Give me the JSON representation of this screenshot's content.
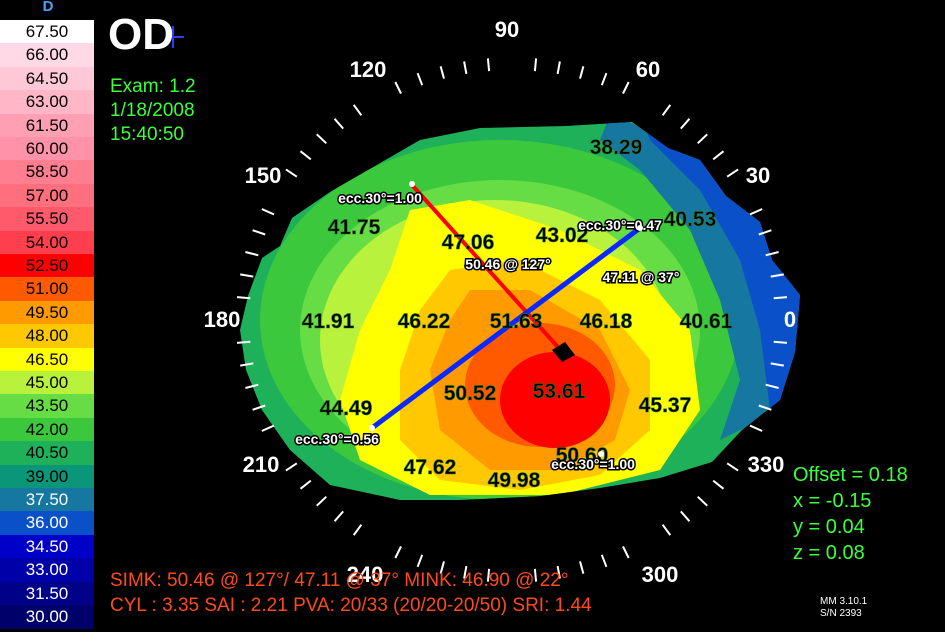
{
  "scale": {
    "letter": "D",
    "values": [
      "67.50",
      "66.00",
      "64.50",
      "63.00",
      "61.50",
      "60.00",
      "58.50",
      "57.00",
      "55.50",
      "54.00",
      "52.50",
      "51.00",
      "49.50",
      "48.00",
      "46.50",
      "45.00",
      "43.50",
      "42.00",
      "40.50",
      "39.00",
      "37.50",
      "36.00",
      "34.50",
      "33.00",
      "31.50",
      "30.00"
    ],
    "colors": [
      "#ffffff",
      "#ffd9e6",
      "#ffc8d7",
      "#ffb7c7",
      "#ff9fb3",
      "#ff92a8",
      "#ff7f90",
      "#ff6f7d",
      "#ff5a6b",
      "#ff3f4e",
      "#ff0000",
      "#ff5a00",
      "#ff9a00",
      "#ffc800",
      "#ffff00",
      "#b8f23c",
      "#66dd44",
      "#3cc83c",
      "#1fb05a",
      "#0a9678",
      "#1678a0",
      "#0a50c8",
      "#0000c8",
      "#0000a8",
      "#000088",
      "#00006a"
    ]
  },
  "eye": "OD",
  "exam": {
    "exam_label": "Exam: 1.2",
    "date": "1/18/2008",
    "time": "15:40:50"
  },
  "angles": {
    "a90": "90",
    "a60": "60",
    "a120": "120",
    "a30": "30",
    "a150": "150",
    "a0": "0",
    "a180": "180",
    "a330": "330",
    "a210": "210",
    "a240": "240",
    "a300": "300"
  },
  "map_values": {
    "v3829": "38.29",
    "v4175": "41.75",
    "v4706": "47.06",
    "v4302": "43.02",
    "v4053": "40.53",
    "v4191": "41.91",
    "v4622": "46.22",
    "v5163": "51.63",
    "v4618": "46.18",
    "v4061": "40.61",
    "v4449": "44.49",
    "v5052": "50.52",
    "v5361": "53.61",
    "v4537": "45.37",
    "v4762": "47.62",
    "v4998": "49.98",
    "v5060": "50.60"
  },
  "annotations": {
    "ecc_top_left": "ecc.30°=1.00",
    "ecc_top_right": "ecc.30°=0.47",
    "ecc_bottom_left": "ecc.30°=0.56",
    "ecc_bottom_right": "ecc.30°=1.00",
    "axis_steep": "50.46 @ 127°",
    "axis_flat": "47.11 @ 37°"
  },
  "offset": {
    "offset": "Offset = 0.18",
    "x": "x = -0.15",
    "y": "y = 0.04",
    "z": "z = 0.08"
  },
  "summary": {
    "line1": "SIMK: 50.46 @ 127°/ 47.11 @ 37°   MINK: 46.90 @ 22°",
    "line2": "CYL : 3.35 SAI : 2.21 PVA: 20/33 (20/20-20/50) SRI: 1.44"
  },
  "version": {
    "mm": "MM 3.10.1",
    "sn": "S/N 2393"
  }
}
